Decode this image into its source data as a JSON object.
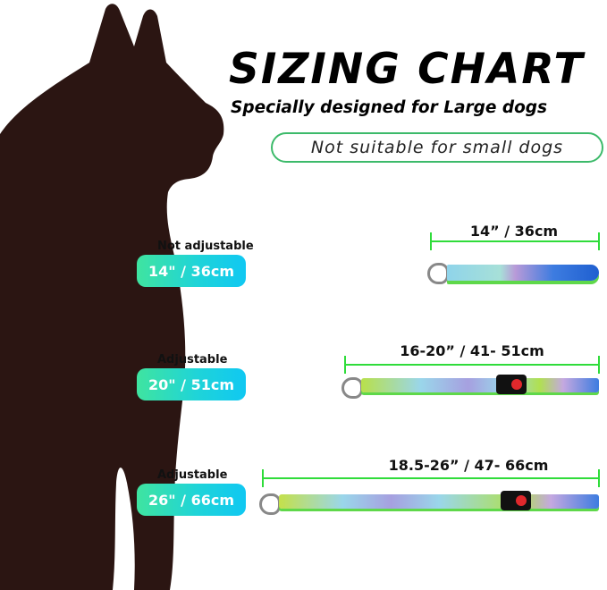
{
  "header": {
    "title": "SIZING CHART",
    "subtitle": "Specially designed for Large dogs",
    "notice": "Not suitable for small dogs"
  },
  "colors": {
    "silhouette": "#2b1512",
    "accent_green": "#2fdc3a",
    "badge_gradient": [
      "#3fe4a0",
      "#10c8f2"
    ],
    "buckle_button": "#e0282c"
  },
  "sizes": [
    {
      "type": "Not adjustable",
      "badge": "14\" / 36cm",
      "measurement": "14” / 36cm"
    },
    {
      "type": "Adjustable",
      "badge": "20\" / 51cm",
      "measurement": "16-20” / 41- 51cm"
    },
    {
      "type": "Adjustable",
      "badge": "26\" / 66cm",
      "measurement": "18.5-26” / 47- 66cm"
    }
  ]
}
